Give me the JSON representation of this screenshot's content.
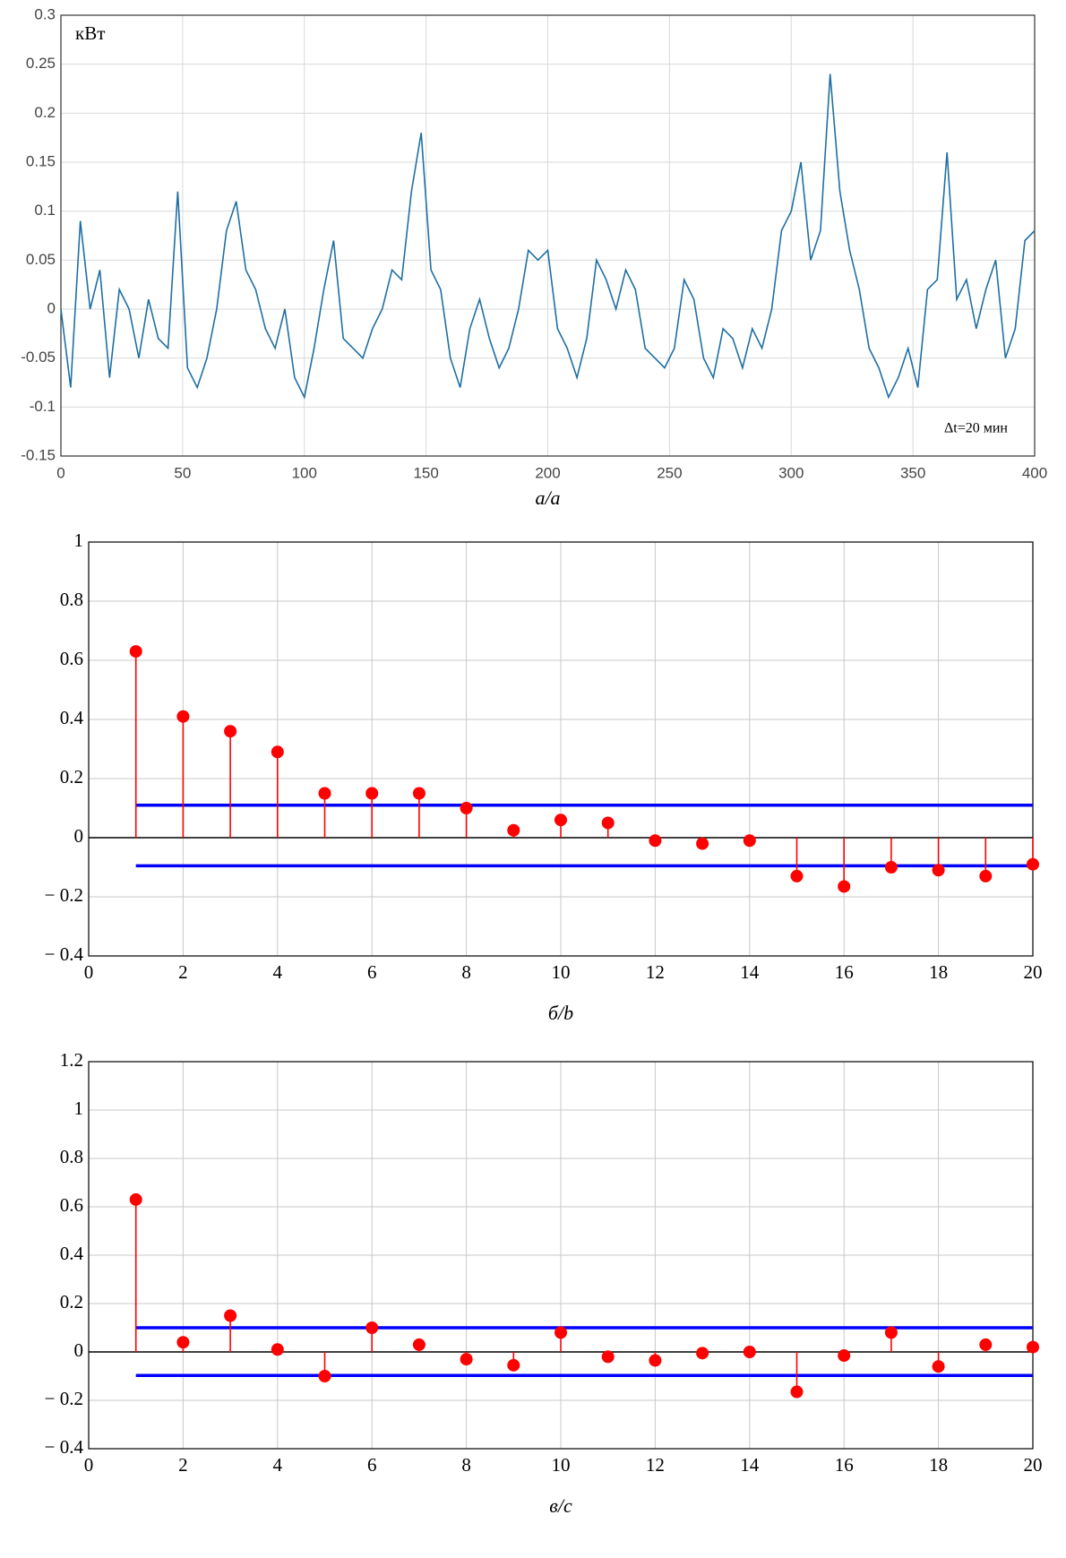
{
  "chart_data": [
    {
      "type": "line",
      "annotations": [
        "кВт",
        "Δt=20 мин"
      ],
      "caption": "а/a",
      "x": [
        0,
        4,
        8,
        12,
        16,
        20,
        24,
        28,
        32,
        36,
        40,
        44,
        48,
        52,
        56,
        60,
        64,
        68,
        72,
        76,
        80,
        84,
        88,
        92,
        96,
        100,
        104,
        108,
        112,
        116,
        120,
        124,
        128,
        132,
        136,
        140,
        144,
        148,
        152,
        156,
        160,
        164,
        168,
        172,
        176,
        180,
        184,
        188,
        192,
        196,
        200,
        204,
        208,
        212,
        216,
        220,
        224,
        228,
        232,
        236,
        240,
        244,
        248,
        252,
        256,
        260,
        264,
        268,
        272,
        276,
        280,
        284,
        288,
        292,
        296,
        300,
        304,
        308,
        312,
        316,
        320,
        324,
        328,
        332,
        336,
        340,
        344,
        348,
        352,
        356,
        360,
        364,
        368,
        372,
        376,
        380,
        384,
        388,
        392,
        396,
        400
      ],
      "values": [
        0.0,
        -0.08,
        0.09,
        0.0,
        0.04,
        -0.07,
        0.02,
        0.0,
        -0.05,
        0.01,
        -0.03,
        -0.04,
        0.12,
        -0.06,
        -0.08,
        -0.05,
        0.0,
        0.08,
        0.11,
        0.04,
        0.02,
        -0.02,
        -0.04,
        0.0,
        -0.07,
        -0.09,
        -0.04,
        0.02,
        0.07,
        -0.03,
        -0.04,
        -0.05,
        -0.02,
        0.0,
        0.04,
        0.03,
        0.12,
        0.18,
        0.04,
        0.02,
        -0.05,
        -0.08,
        -0.02,
        0.01,
        -0.03,
        -0.06,
        -0.04,
        0.0,
        0.06,
        0.05,
        0.06,
        -0.02,
        -0.04,
        -0.07,
        -0.03,
        0.05,
        0.03,
        0.0,
        0.04,
        0.02,
        -0.04,
        -0.05,
        -0.06,
        -0.04,
        0.03,
        0.01,
        -0.05,
        -0.07,
        -0.02,
        -0.03,
        -0.06,
        -0.02,
        -0.04,
        0.0,
        0.08,
        0.1,
        0.15,
        0.05,
        0.08,
        0.24,
        0.12,
        0.06,
        0.02,
        -0.04,
        -0.06,
        -0.09,
        -0.07,
        -0.04,
        -0.08,
        0.02,
        0.03,
        0.16,
        0.01,
        0.03,
        -0.02,
        0.02,
        0.05,
        -0.05,
        -0.02,
        0.07,
        0.08
      ],
      "color": "#1f6fa3",
      "xlim": [
        0,
        400
      ],
      "xticks": [
        0,
        50,
        100,
        150,
        200,
        250,
        300,
        350,
        400
      ],
      "ylim": [
        -0.15,
        0.3
      ],
      "yticks": [
        -0.15,
        -0.1,
        -0.05,
        0,
        0.05,
        0.1,
        0.15,
        0.2,
        0.25,
        0.3
      ],
      "grid": true
    },
    {
      "type": "stem",
      "caption": "б/b",
      "x": [
        1,
        2,
        3,
        4,
        5,
        6,
        7,
        8,
        9,
        10,
        11,
        12,
        13,
        14,
        15,
        16,
        17,
        18,
        19,
        20
      ],
      "values": [
        0.63,
        0.41,
        0.36,
        0.29,
        0.15,
        0.15,
        0.15,
        0.1,
        0.025,
        0.06,
        0.05,
        -0.01,
        -0.02,
        -0.01,
        -0.13,
        -0.165,
        -0.1,
        -0.11,
        -0.13,
        -0.09
      ],
      "color": "#ff0000",
      "bounds": [
        0.11,
        -0.095
      ],
      "bound_color": "#0000ff",
      "xlim": [
        0,
        20
      ],
      "xticks": [
        0,
        2,
        4,
        6,
        8,
        10,
        12,
        14,
        16,
        18,
        20
      ],
      "ylim": [
        -0.4,
        1
      ],
      "yticks": [
        {
          "value": -0.4,
          "label": "− 0.4"
        },
        {
          "value": -0.2,
          "label": "− 0.2"
        },
        0,
        0.2,
        0.4,
        0.6,
        0.8,
        1
      ],
      "grid": true
    },
    {
      "type": "stem",
      "caption": "в/c",
      "x": [
        1,
        2,
        3,
        4,
        5,
        6,
        7,
        8,
        9,
        10,
        11,
        12,
        13,
        14,
        15,
        16,
        17,
        18,
        19,
        20
      ],
      "values": [
        0.63,
        0.04,
        0.15,
        0.01,
        -0.1,
        0.1,
        0.03,
        -0.03,
        -0.055,
        0.08,
        -0.02,
        -0.035,
        -0.005,
        0.0,
        -0.165,
        -0.015,
        0.08,
        -0.06,
        0.03,
        0.02
      ],
      "color": "#ff0000",
      "bounds": [
        0.1,
        -0.097
      ],
      "bound_color": "#0000ff",
      "xlim": [
        0,
        20
      ],
      "xticks": [
        0,
        2,
        4,
        6,
        8,
        10,
        12,
        14,
        16,
        18,
        20
      ],
      "ylim": [
        -0.4,
        1.2
      ],
      "yticks": [
        {
          "value": -0.4,
          "label": "− 0.4"
        },
        {
          "value": -0.2,
          "label": "− 0.2"
        },
        0,
        0.2,
        0.4,
        0.6,
        0.8,
        1,
        1.2
      ],
      "grid": true
    }
  ]
}
